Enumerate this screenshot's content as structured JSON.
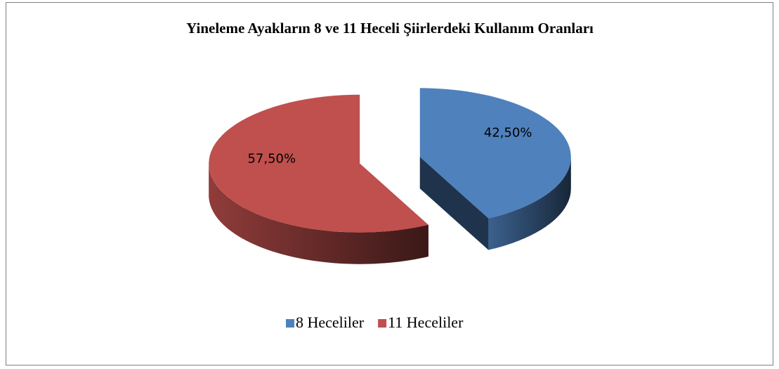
{
  "chart_data": {
    "type": "pie",
    "title": "Yineleme Ayakların 8 ve 11 Heceli Şiirlerdeki Kullanım Oranları",
    "categories": [
      "8 Heceliler",
      "11 Heceliler"
    ],
    "values": [
      42.5,
      57.5
    ],
    "value_labels": [
      "42,50%",
      "57,50%"
    ],
    "colors": [
      "#4f81bd",
      "#c0504d"
    ],
    "legend": "bottom"
  }
}
